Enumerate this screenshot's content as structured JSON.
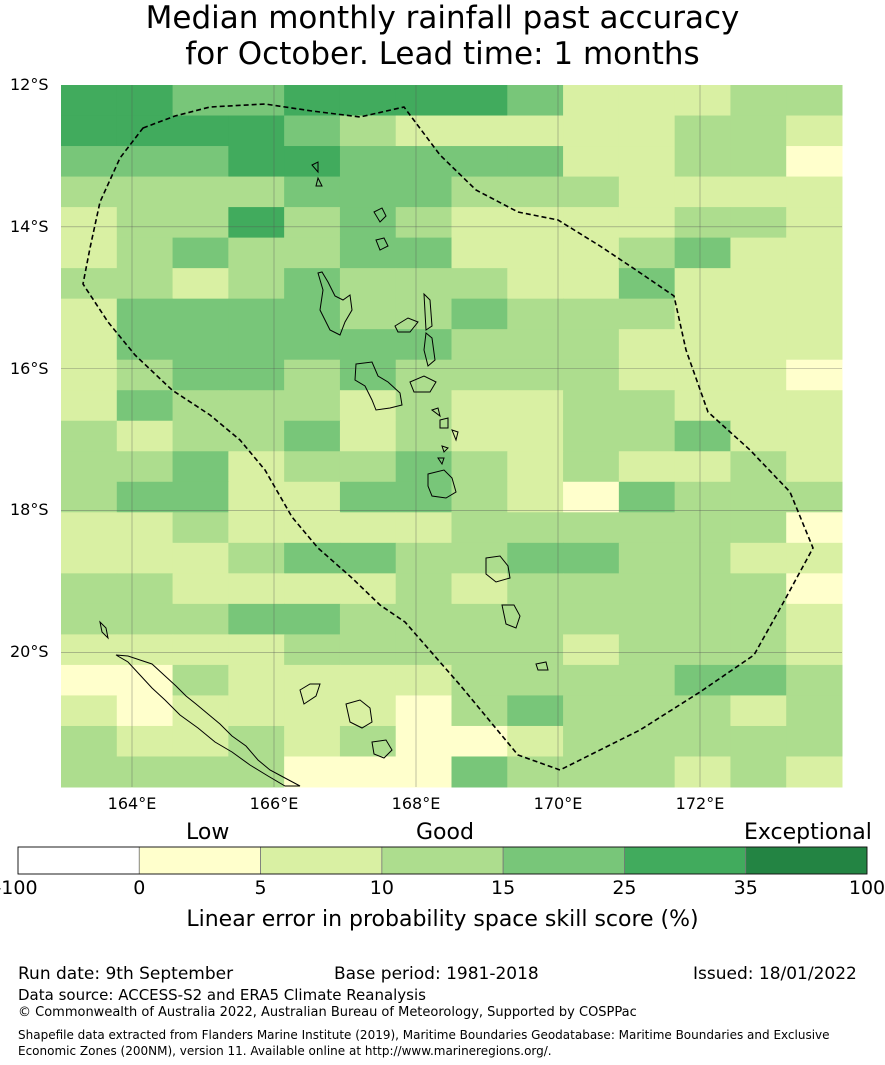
{
  "title": {
    "line1": "Median monthly rainfall past accuracy",
    "line2": "for October. Lead time: 1 months"
  },
  "map": {
    "lat_labels": [
      "12°S",
      "14°S",
      "16°S",
      "18°S",
      "20°S"
    ],
    "lon_labels": [
      "164°E",
      "166°E",
      "168°E",
      "170°E",
      "172°E"
    ],
    "extent": {
      "lon_min": 163.0,
      "lon_max": 174.0,
      "lat_min": -21.9,
      "lat_max": -12.0
    },
    "grid_note_units": "degrees",
    "skill_grid_rows_north_to_south": [
      "55445555422233",
      "55554322222332",
      "44455444422331",
      "33334443332222",
      "23353432222332",
      "23433442223422",
      "33234333224222",
      "24444334333222",
      "24444443332222",
      "23443433332221",
      "24333232233222",
      "32334232233422",
      "33423343232232",
      "34422443214333",
      "22322223333331",
      "22234433443322",
      "33222232333331",
      "33344333333332",
      "22223333323332",
      "11322223333443",
      "21222213433323",
      "32232311233333",
      "33331114333232"
    ]
  },
  "colorbar": {
    "categories": [
      "Low",
      "Good",
      "Exceptional"
    ],
    "ticks": [
      "-100",
      "0",
      "5",
      "10",
      "15",
      "25",
      "35",
      "100"
    ],
    "colors": [
      "#ffffff",
      "#ffffcc",
      "#d9f0a3",
      "#addd8e",
      "#78c679",
      "#41ab5d",
      "#238443"
    ],
    "title": "Linear error in probability space skill score (%)"
  },
  "footer": {
    "run_date": "Run date: 9th September",
    "base_period": "Base period: 1981-2018",
    "issued": "Issued: 18/01/2022",
    "data_source": "Data source: ACCESS-S2 and ERA5 Climate Reanalysis",
    "copyright": "© Commonwealth of Australia 2022, Australian Bureau of Meteorology, Supported by COSPPac",
    "shapefile": "Shapefile data extracted from Flanders Marine Institute (2019), Maritime Boundaries Geodatabase: Maritime Boundaries and Exclusive Economic Zones (200NM), version 11. Available online at http://www.marineregions.org/."
  }
}
